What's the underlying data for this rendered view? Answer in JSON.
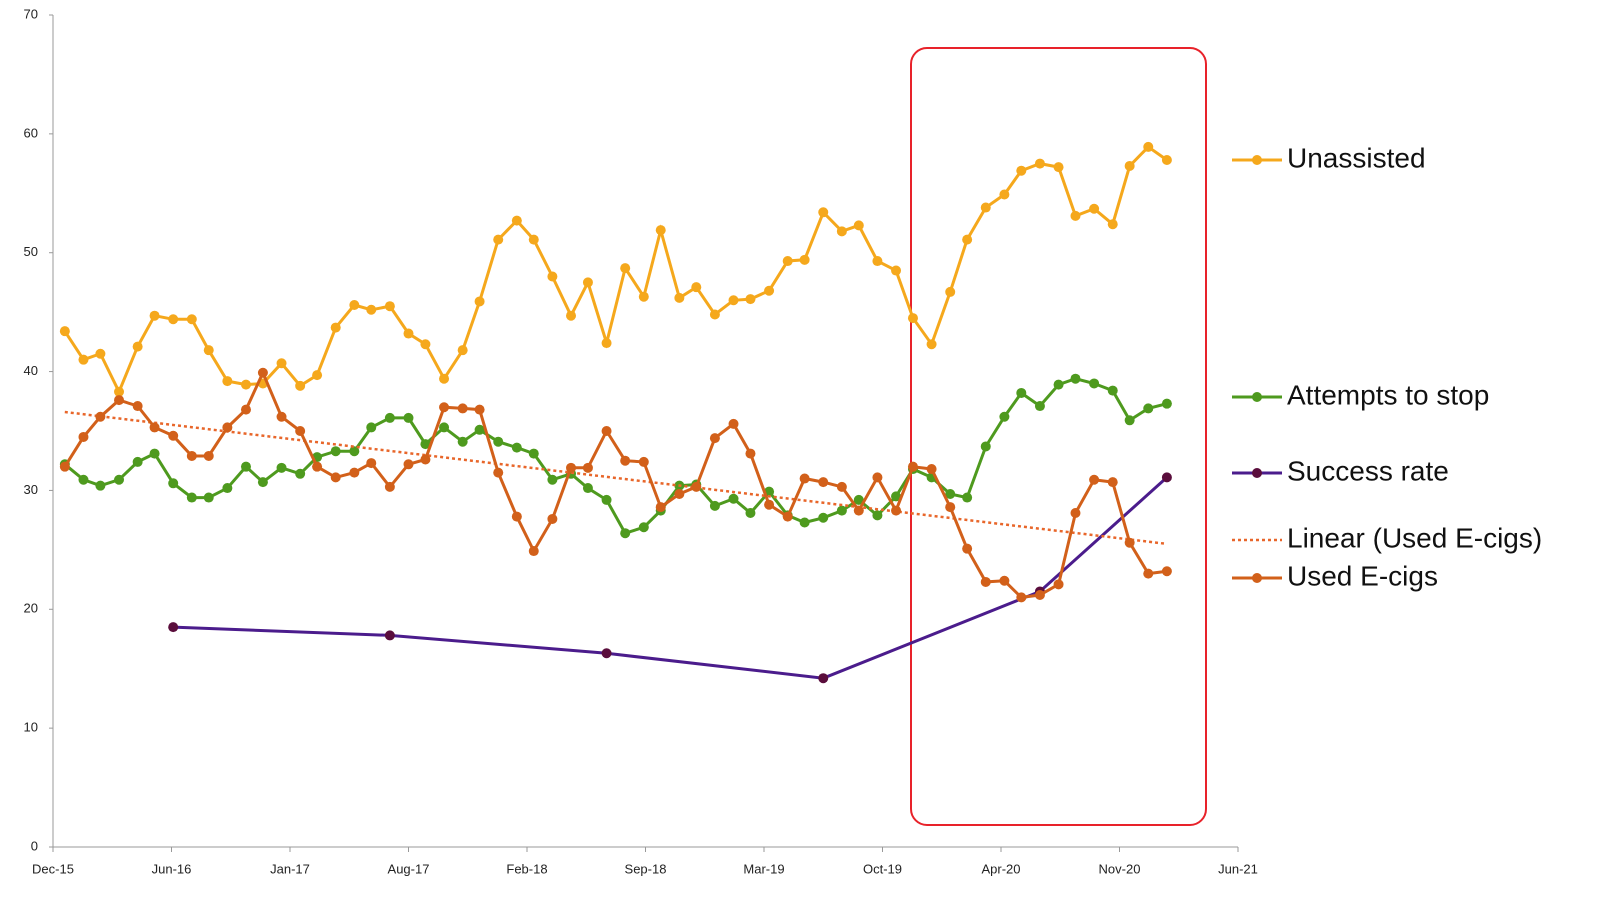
{
  "chart_data": {
    "type": "line",
    "x": [
      0.7,
      1.8,
      2.8,
      3.9,
      5.0,
      6.0,
      7.1,
      8.2,
      9.2,
      10.3,
      11.4,
      12.4,
      13.5,
      14.6,
      15.6,
      16.7,
      17.8,
      18.8,
      19.9,
      21.0,
      22.0,
      23.1,
      24.2,
      25.2,
      26.3,
      27.4,
      28.4,
      29.5,
      30.6,
      31.6,
      32.7,
      33.8,
      34.9,
      35.9,
      37.0,
      38.0,
      39.1,
      40.2,
      41.2,
      42.3,
      43.4,
      44.4,
      45.5,
      46.6,
      47.6,
      48.7,
      49.8,
      50.8,
      51.9,
      53.0,
      54.0,
      55.1,
      56.2,
      57.2,
      58.3,
      59.4,
      60.4,
      61.5,
      62.6,
      63.6,
      64.7,
      65.8
    ],
    "series": [
      {
        "name": "Unassisted",
        "color": "#f5a81c",
        "values": [
          43.4,
          41.0,
          41.5,
          38.3,
          42.1,
          44.7,
          44.4,
          44.4,
          41.8,
          39.2,
          38.9,
          39.0,
          40.7,
          38.8,
          39.7,
          43.7,
          45.6,
          45.2,
          45.5,
          43.2,
          42.3,
          39.4,
          41.8,
          45.9,
          51.1,
          52.7,
          51.1,
          48.0,
          44.7,
          47.5,
          42.4,
          48.7,
          46.3,
          51.9,
          46.2,
          47.1,
          44.8,
          46.0,
          46.1,
          46.8,
          49.3,
          49.4,
          53.4,
          51.8,
          52.3,
          49.3,
          48.5,
          44.5,
          42.3,
          46.7,
          51.1,
          53.8,
          54.9,
          56.9,
          57.5,
          57.2,
          53.1,
          53.7,
          52.4,
          57.3,
          58.9,
          57.8
        ]
      },
      {
        "name": "Attempts to stop",
        "color": "#4e9a1e",
        "values": [
          32.2,
          30.9,
          30.4,
          30.9,
          32.4,
          33.1,
          30.6,
          29.4,
          29.4,
          30.2,
          32.0,
          30.7,
          31.9,
          31.4,
          32.8,
          33.3,
          33.3,
          35.3,
          36.1,
          36.1,
          33.9,
          35.3,
          34.1,
          35.1,
          34.1,
          33.6,
          33.1,
          30.9,
          31.4,
          30.2,
          29.2,
          26.4,
          26.9,
          28.3,
          30.4,
          30.5,
          28.7,
          29.3,
          28.1,
          29.9,
          27.9,
          27.3,
          27.7,
          28.3,
          29.2,
          27.9,
          29.5,
          31.8,
          31.1,
          29.7,
          29.4,
          33.7,
          36.2,
          38.2,
          37.1,
          38.9,
          39.4,
          39.0,
          38.4,
          35.9,
          36.9,
          37.3
        ]
      },
      {
        "name": "Success rate",
        "color": "#4b1c8c",
        "marker_color": "#5a0d3c",
        "x": [
          7.1,
          19.9,
          32.7,
          45.5,
          58.3,
          65.8
        ],
        "values": [
          18.5,
          17.8,
          16.3,
          14.2,
          21.5,
          31.1
        ]
      },
      {
        "name": "Linear (Used E-cigs)",
        "color": "#e8662a",
        "dash": true,
        "x": [
          0.7,
          65.8
        ],
        "values": [
          36.6,
          25.5
        ]
      },
      {
        "name": "Used E-cigs",
        "color": "#d2601a",
        "values": [
          32.0,
          34.5,
          36.2,
          37.6,
          37.1,
          35.3,
          34.6,
          32.9,
          32.9,
          35.3,
          36.8,
          39.9,
          36.2,
          35.0,
          32.0,
          31.1,
          31.5,
          32.3,
          30.3,
          32.2,
          32.6,
          37.0,
          36.9,
          36.8,
          31.5,
          27.8,
          24.9,
          27.6,
          31.9,
          31.9,
          35.0,
          32.5,
          32.4,
          28.6,
          29.7,
          30.3,
          34.4,
          35.6,
          33.1,
          28.8,
          27.8,
          31.0,
          30.7,
          30.3,
          28.3,
          31.1,
          28.3,
          32.0,
          31.8,
          28.6,
          25.1,
          22.3,
          22.4,
          21.0,
          21.2,
          22.1,
          28.1,
          30.9,
          30.7,
          25.6,
          23.0,
          23.2
        ]
      }
    ],
    "xlim": [
      0,
      70
    ],
    "xticks": [
      {
        "value": 0,
        "label": "Dec-15"
      },
      {
        "value": 7,
        "label": "Jun-16"
      },
      {
        "value": 14,
        "label": "Jan-17"
      },
      {
        "value": 21,
        "label": "Aug-17"
      },
      {
        "value": 28,
        "label": "Feb-18"
      },
      {
        "value": 35,
        "label": "Sep-18"
      },
      {
        "value": 42,
        "label": "Mar-19"
      },
      {
        "value": 49,
        "label": "Oct-19"
      },
      {
        "value": 56,
        "label": "Apr-20"
      },
      {
        "value": 63,
        "label": "Nov-20"
      },
      {
        "value": 70,
        "label": "Jun-21"
      }
    ],
    "ylim": [
      0,
      70
    ],
    "yticks": [
      0,
      10,
      20,
      30,
      40,
      50,
      60,
      70
    ],
    "legend": "right"
  }
}
